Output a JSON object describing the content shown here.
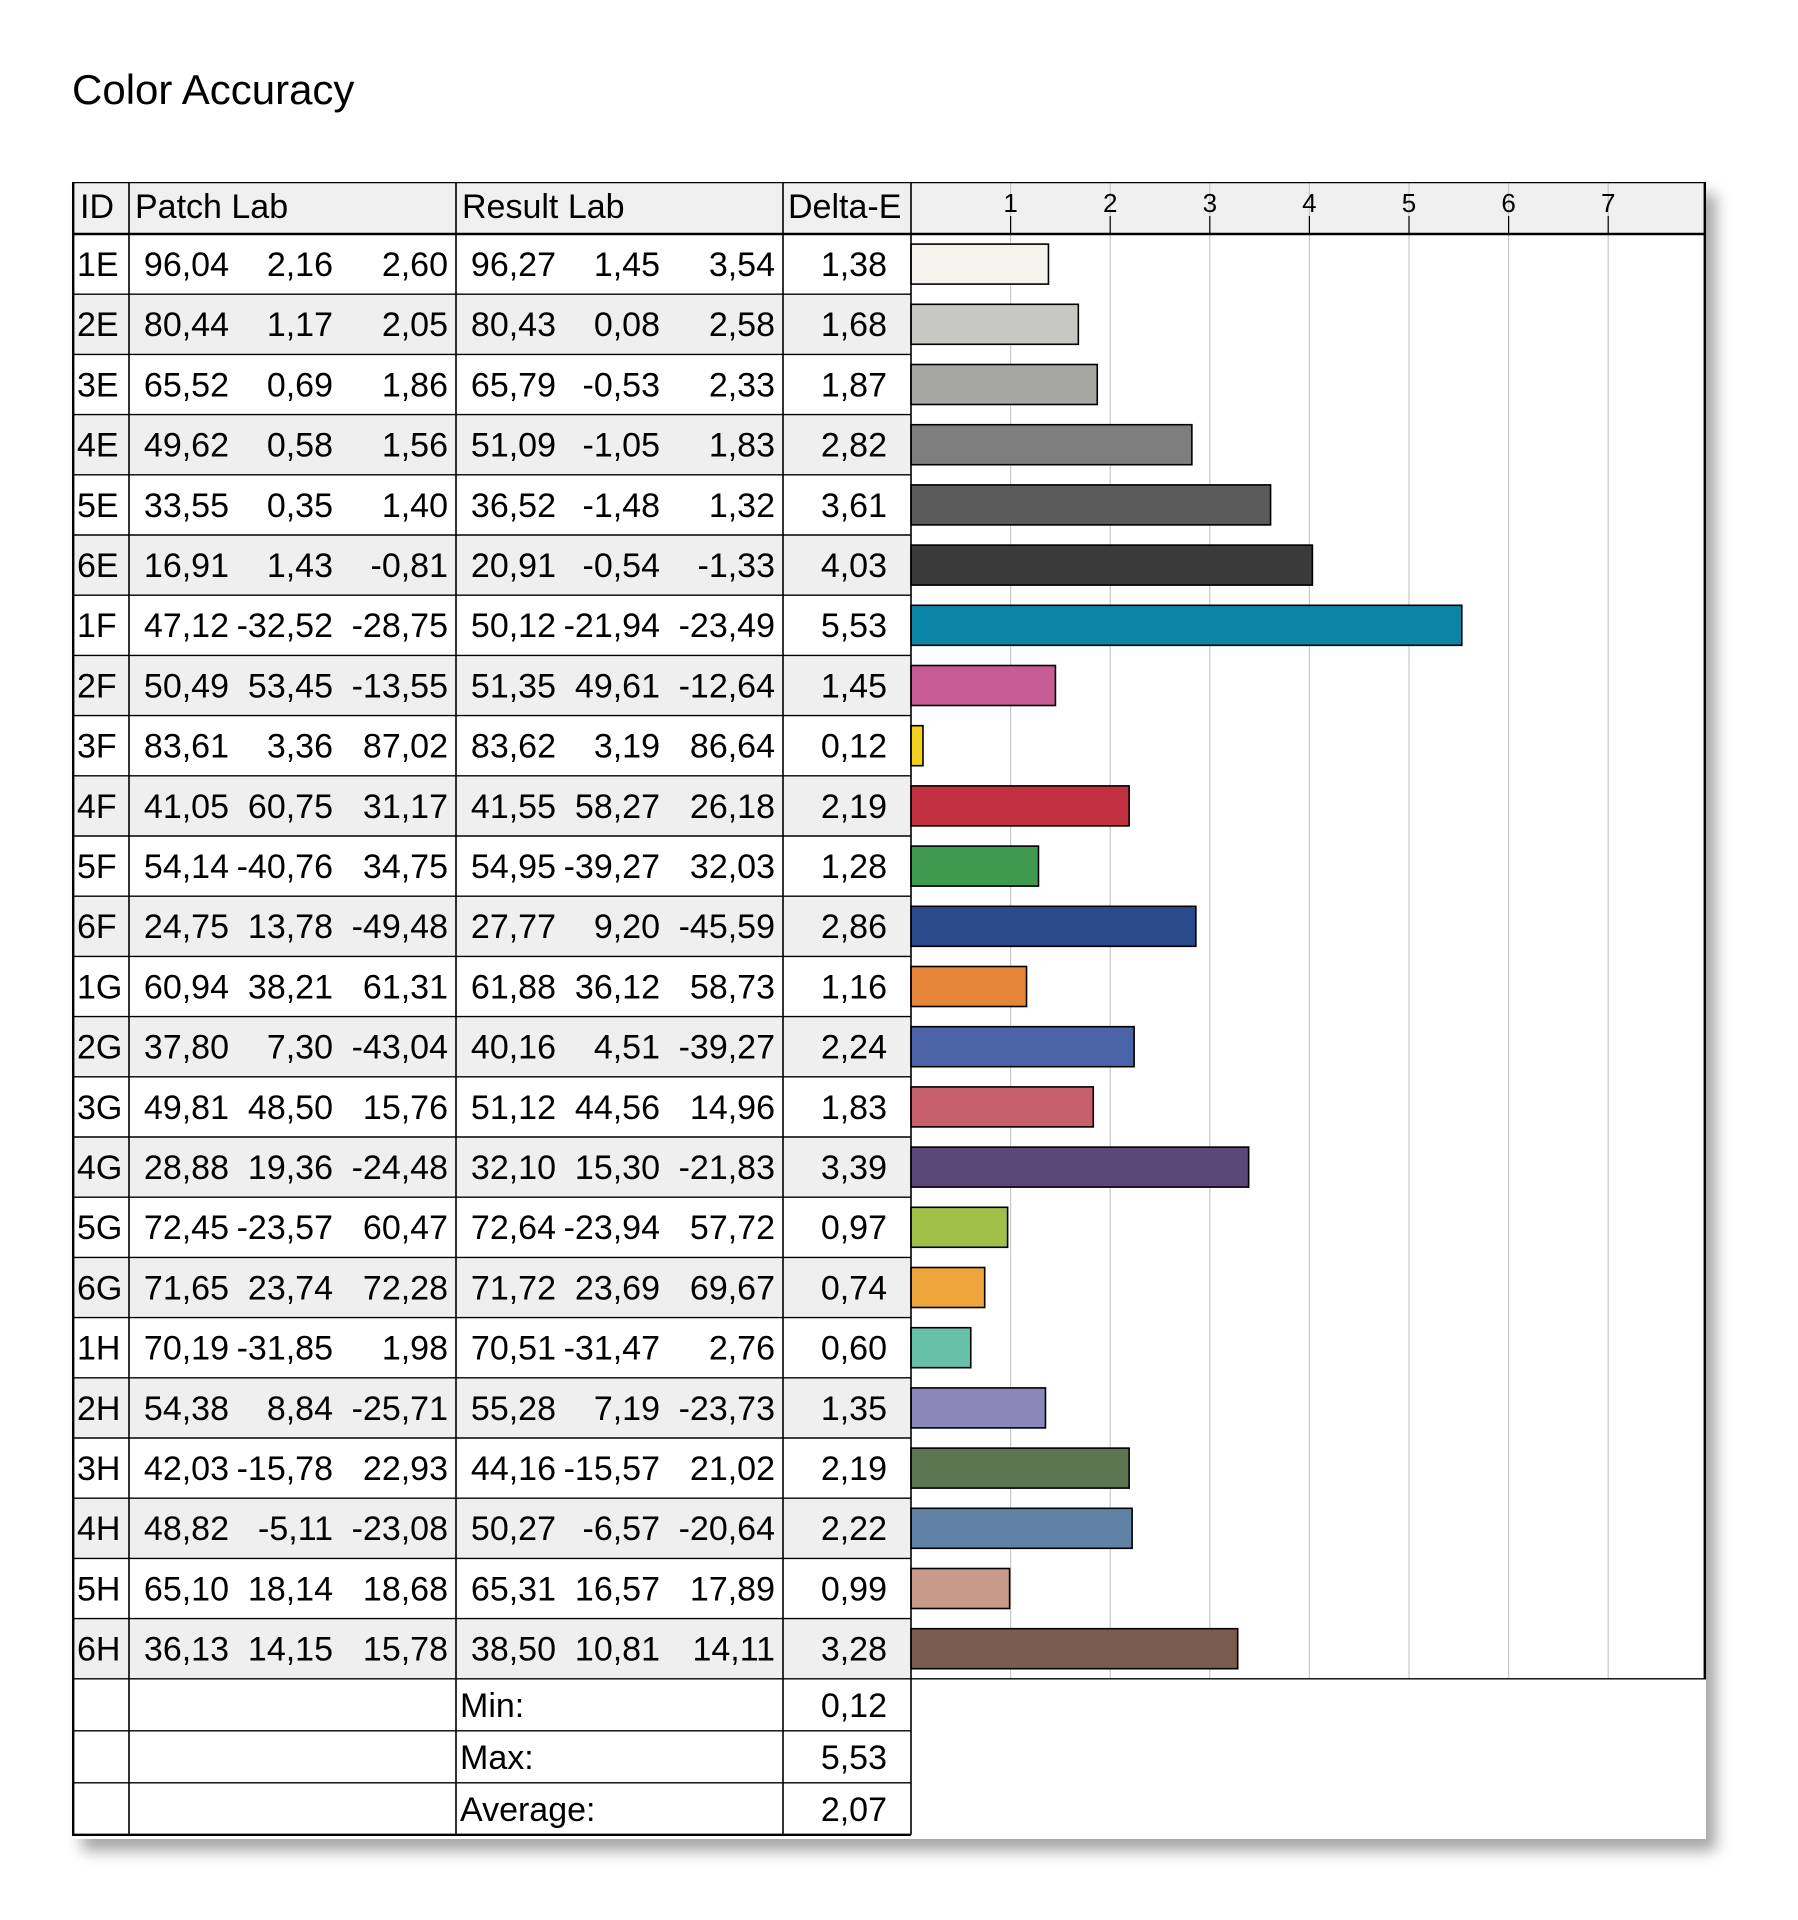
{
  "title": "Color Accuracy",
  "table": {
    "headers": {
      "id": "ID",
      "patch": "Patch Lab",
      "result": "Result Lab",
      "delta": "Delta-E"
    },
    "rows": [
      {
        "id": "1E",
        "patch": [
          "96,04",
          "2,16",
          "2,60"
        ],
        "result": [
          "96,27",
          "1,45",
          "3,54"
        ],
        "delta": "1,38"
      },
      {
        "id": "2E",
        "patch": [
          "80,44",
          "1,17",
          "2,05"
        ],
        "result": [
          "80,43",
          "0,08",
          "2,58"
        ],
        "delta": "1,68"
      },
      {
        "id": "3E",
        "patch": [
          "65,52",
          "0,69",
          "1,86"
        ],
        "result": [
          "65,79",
          "-0,53",
          "2,33"
        ],
        "delta": "1,87"
      },
      {
        "id": "4E",
        "patch": [
          "49,62",
          "0,58",
          "1,56"
        ],
        "result": [
          "51,09",
          "-1,05",
          "1,83"
        ],
        "delta": "2,82"
      },
      {
        "id": "5E",
        "patch": [
          "33,55",
          "0,35",
          "1,40"
        ],
        "result": [
          "36,52",
          "-1,48",
          "1,32"
        ],
        "delta": "3,61"
      },
      {
        "id": "6E",
        "patch": [
          "16,91",
          "1,43",
          "-0,81"
        ],
        "result": [
          "20,91",
          "-0,54",
          "-1,33"
        ],
        "delta": "4,03"
      },
      {
        "id": "1F",
        "patch": [
          "47,12",
          "-32,52",
          "-28,75"
        ],
        "result": [
          "50,12",
          "-21,94",
          "-23,49"
        ],
        "delta": "5,53"
      },
      {
        "id": "2F",
        "patch": [
          "50,49",
          "53,45",
          "-13,55"
        ],
        "result": [
          "51,35",
          "49,61",
          "-12,64"
        ],
        "delta": "1,45"
      },
      {
        "id": "3F",
        "patch": [
          "83,61",
          "3,36",
          "87,02"
        ],
        "result": [
          "83,62",
          "3,19",
          "86,64"
        ],
        "delta": "0,12"
      },
      {
        "id": "4F",
        "patch": [
          "41,05",
          "60,75",
          "31,17"
        ],
        "result": [
          "41,55",
          "58,27",
          "26,18"
        ],
        "delta": "2,19"
      },
      {
        "id": "5F",
        "patch": [
          "54,14",
          "-40,76",
          "34,75"
        ],
        "result": [
          "54,95",
          "-39,27",
          "32,03"
        ],
        "delta": "1,28"
      },
      {
        "id": "6F",
        "patch": [
          "24,75",
          "13,78",
          "-49,48"
        ],
        "result": [
          "27,77",
          "9,20",
          "-45,59"
        ],
        "delta": "2,86"
      },
      {
        "id": "1G",
        "patch": [
          "60,94",
          "38,21",
          "61,31"
        ],
        "result": [
          "61,88",
          "36,12",
          "58,73"
        ],
        "delta": "1,16"
      },
      {
        "id": "2G",
        "patch": [
          "37,80",
          "7,30",
          "-43,04"
        ],
        "result": [
          "40,16",
          "4,51",
          "-39,27"
        ],
        "delta": "2,24"
      },
      {
        "id": "3G",
        "patch": [
          "49,81",
          "48,50",
          "15,76"
        ],
        "result": [
          "51,12",
          "44,56",
          "14,96"
        ],
        "delta": "1,83"
      },
      {
        "id": "4G",
        "patch": [
          "28,88",
          "19,36",
          "-24,48"
        ],
        "result": [
          "32,10",
          "15,30",
          "-21,83"
        ],
        "delta": "3,39"
      },
      {
        "id": "5G",
        "patch": [
          "72,45",
          "-23,57",
          "60,47"
        ],
        "result": [
          "72,64",
          "-23,94",
          "57,72"
        ],
        "delta": "0,97"
      },
      {
        "id": "6G",
        "patch": [
          "71,65",
          "23,74",
          "72,28"
        ],
        "result": [
          "71,72",
          "23,69",
          "69,67"
        ],
        "delta": "0,74"
      },
      {
        "id": "1H",
        "patch": [
          "70,19",
          "-31,85",
          "1,98"
        ],
        "result": [
          "70,51",
          "-31,47",
          "2,76"
        ],
        "delta": "0,60"
      },
      {
        "id": "2H",
        "patch": [
          "54,38",
          "8,84",
          "-25,71"
        ],
        "result": [
          "55,28",
          "7,19",
          "-23,73"
        ],
        "delta": "1,35"
      },
      {
        "id": "3H",
        "patch": [
          "42,03",
          "-15,78",
          "22,93"
        ],
        "result": [
          "44,16",
          "-15,57",
          "21,02"
        ],
        "delta": "2,19"
      },
      {
        "id": "4H",
        "patch": [
          "48,82",
          "-5,11",
          "-23,08"
        ],
        "result": [
          "50,27",
          "-6,57",
          "-20,64"
        ],
        "delta": "2,22"
      },
      {
        "id": "5H",
        "patch": [
          "65,10",
          "18,14",
          "18,68"
        ],
        "result": [
          "65,31",
          "16,57",
          "17,89"
        ],
        "delta": "0,99"
      },
      {
        "id": "6H",
        "patch": [
          "36,13",
          "14,15",
          "15,78"
        ],
        "result": [
          "38,50",
          "10,81",
          "14,11"
        ],
        "delta": "3,28"
      }
    ],
    "summary": [
      {
        "label": "Min:",
        "value": "0,12"
      },
      {
        "label": "Max:",
        "value": "5,53"
      },
      {
        "label": "Average:",
        "value": "2,07"
      }
    ]
  },
  "chart_data": {
    "type": "bar",
    "orientation": "horizontal",
    "title": "Color Accuracy",
    "categories": [
      "1E",
      "2E",
      "3E",
      "4E",
      "5E",
      "6E",
      "1F",
      "2F",
      "3F",
      "4F",
      "5F",
      "6F",
      "1G",
      "2G",
      "3G",
      "4G",
      "5G",
      "6G",
      "1H",
      "2H",
      "3H",
      "4H",
      "5H",
      "6H"
    ],
    "values": [
      1.38,
      1.68,
      1.87,
      2.82,
      3.61,
      4.03,
      5.53,
      1.45,
      0.12,
      2.19,
      1.28,
      2.86,
      1.16,
      2.24,
      1.83,
      3.39,
      0.97,
      0.74,
      0.6,
      1.35,
      2.19,
      2.22,
      0.99,
      3.28
    ],
    "colors": [
      "#f5f3ee",
      "#c8c8c3",
      "#a6a7a2",
      "#7e7e7e",
      "#5b5b5b",
      "#3a3a3a",
      "#0a85a6",
      "#c75b95",
      "#f2d21f",
      "#c0303f",
      "#3f9a4f",
      "#2a4a8c",
      "#e5853a",
      "#4a64a7",
      "#c8606a",
      "#5a4878",
      "#a0c04a",
      "#eea53c",
      "#66c0aa",
      "#8a88b8",
      "#5d7652",
      "#6082a6",
      "#c89a8a",
      "#7a5c4e"
    ],
    "xticks": [
      1,
      2,
      3,
      4,
      5,
      6,
      7
    ],
    "xlim": [
      0,
      8
    ],
    "grid": true
  }
}
